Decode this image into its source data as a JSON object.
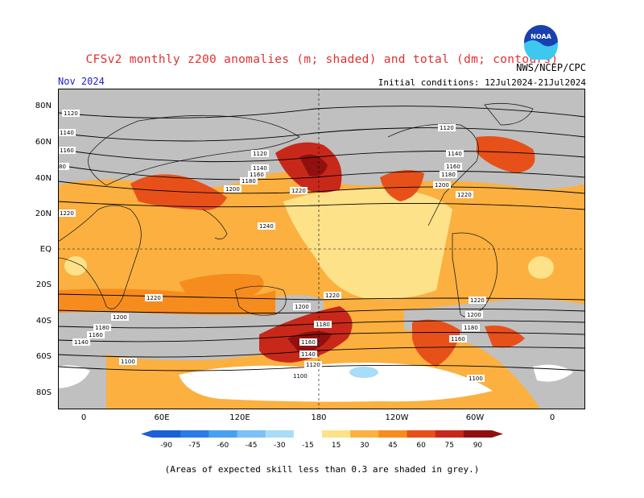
{
  "header": {
    "title": "CFSv2 monthly z200 anomalies (m; shaded) and total (dm; contours)",
    "agency": "NWS/NCEP/CPC",
    "month": "Nov 2024",
    "initial_conditions": "Initial conditions: 12Jul2024-21Jul2024",
    "logo_text": "NOAA"
  },
  "map": {
    "projection": "cylindrical equidistant",
    "lat_labels": [
      "80N",
      "60N",
      "40N",
      "20N",
      "EQ",
      "20S",
      "40S",
      "60S",
      "80S"
    ],
    "lon_labels": [
      "0",
      "60E",
      "120E",
      "180",
      "120W",
      "60W",
      "0"
    ],
    "center_line": "180 dateline",
    "contour_labels": [
      "1120",
      "1140",
      "1160",
      "1180",
      "1200",
      "1220",
      "1240"
    ],
    "skill_mask_color": "#c0c0c0"
  },
  "colorbar": {
    "ticks": [
      "-90",
      "-75",
      "-60",
      "-45",
      "-30",
      "-15",
      "15",
      "30",
      "45",
      "60",
      "75",
      "90"
    ],
    "colors": [
      "#1a5fd6",
      "#2a7be8",
      "#4aa0f0",
      "#7cc0f5",
      "#a8dcf8",
      "#ffffff",
      "#fde28a",
      "#fbb040",
      "#f78c1e",
      "#e8501a",
      "#c8281a",
      "#901010"
    ]
  },
  "footnote": "(Areas of expected skill less than 0.3 are shaded in grey.)"
}
